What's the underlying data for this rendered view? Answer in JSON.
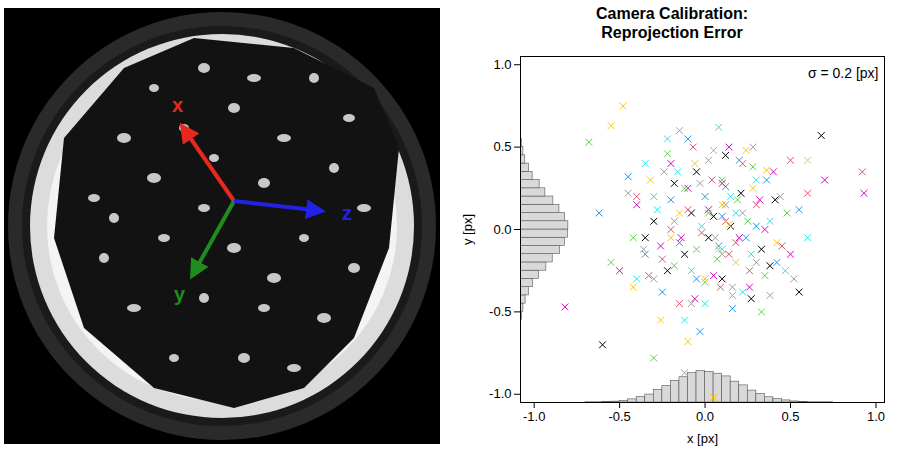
{
  "chart_data": {
    "type": "scatter",
    "title": "Camera Calibration:\nReprojection Error",
    "x_label": "x [px]",
    "y_label": "y [px]",
    "annotation": "σ = 0.2 [px]",
    "marker": "x",
    "grid": false,
    "xlim": [
      -1.08,
      1.05
    ],
    "ylim": [
      -1.05,
      1.05
    ],
    "xticks": [
      {
        "value": -1,
        "label": "-1.0"
      },
      {
        "value": -0.5,
        "label": "-0.5"
      },
      {
        "value": 0,
        "label": "0.0"
      },
      {
        "value": 0.5,
        "label": "0.5"
      },
      {
        "value": 1,
        "label": "1.0"
      }
    ],
    "yticks": [
      {
        "value": -1,
        "label": "-1.0"
      },
      {
        "value": -0.5,
        "label": "-0.5"
      },
      {
        "value": 0,
        "label": "0.0"
      },
      {
        "value": 0.5,
        "label": "0.5"
      },
      {
        "value": 1,
        "label": "1.0"
      }
    ],
    "series": [
      {
        "color": "#000000",
        "x": [
          0.05,
          -0.12,
          0.21,
          -0.3,
          0.1,
          0.33,
          -0.05,
          0.15,
          -0.22,
          0.02,
          0.41,
          -0.18,
          0.27,
          -0.6,
          0.68,
          0.38,
          -0.08,
          0.12,
          -0.35,
          0.55
        ],
        "y": [
          0.08,
          -0.15,
          0.22,
          0.05,
          -0.3,
          -0.12,
          0.35,
          0.02,
          -0.25,
          -0.05,
          0.18,
          0.28,
          -0.42,
          -0.7,
          0.57,
          -0.22,
          0.1,
          0.45,
          -0.05,
          -0.38
        ]
      },
      {
        "color": "#df536b",
        "x": [
          -0.1,
          0.18,
          0.92,
          0.04,
          -0.25,
          0.3,
          0.09,
          -0.4,
          0.22,
          -0.02,
          0.45,
          -0.15,
          0.12,
          0.6,
          -0.33,
          0.26,
          -0.07,
          0.5,
          0.14,
          -0.2
        ],
        "y": [
          0.12,
          -0.08,
          0.35,
          0.3,
          -0.18,
          0.15,
          -0.35,
          0.2,
          0.4,
          -0.02,
          -0.1,
          -0.45,
          0.05,
          0.22,
          -0.28,
          -0.25,
          0.5,
          0.42,
          -0.15,
          0.0
        ]
      },
      {
        "color": "#61d04f",
        "x": [
          -0.68,
          0.02,
          -0.18,
          0.25,
          0.1,
          -0.3,
          0.35,
          -0.05,
          0.16,
          -0.42,
          0.28,
          -0.12,
          0.07,
          -0.3,
          0.48,
          -0.22,
          0.19,
          0.0,
          -0.55,
          0.33
        ],
        "y": [
          0.53,
          0.1,
          -0.22,
          0.05,
          0.3,
          0.2,
          -0.28,
          -0.12,
          -0.4,
          -0.05,
          0.38,
          0.25,
          -0.18,
          -0.78,
          0.1,
          0.46,
          0.18,
          -0.32,
          -0.2,
          -0.5
        ]
      },
      {
        "color": "#2297e6",
        "x": [
          0.08,
          -0.2,
          0.3,
          -0.05,
          0.2,
          -0.35,
          0.12,
          0.42,
          -0.1,
          -0.25,
          0.55,
          0.0,
          0.24,
          -0.45,
          0.16,
          -0.15,
          0.36,
          -0.03,
          0.1,
          -0.62
        ],
        "y": [
          -0.1,
          0.18,
          0.02,
          -0.3,
          0.42,
          -0.15,
          0.26,
          -0.2,
          0.55,
          -0.38,
          0.12,
          0.2,
          -0.05,
          0.32,
          -0.48,
          -0.08,
          0.3,
          -0.62,
          0.08,
          0.1
        ]
      },
      {
        "color": "#28e2e5",
        "x": [
          0.15,
          -0.08,
          0.27,
          -0.28,
          0.05,
          0.38,
          -0.16,
          0.22,
          -0.4,
          0.1,
          -0.02,
          0.47,
          -0.22,
          0.3,
          0.0,
          -0.35,
          0.18,
          -0.12,
          0.6,
          0.08
        ],
        "y": [
          0.2,
          -0.25,
          -0.15,
          0.12,
          0.48,
          0.05,
          0.35,
          -0.38,
          -0.3,
          -0.12,
          0.02,
          -0.25,
          0.55,
          0.3,
          -0.45,
          0.4,
          0.1,
          -0.55,
          -0.05,
          0.62
        ]
      },
      {
        "color": "#cd0bbc",
        "x": [
          0.93,
          -0.82,
          0.2,
          -0.1,
          0.32,
          -0.26,
          0.05,
          0.4,
          -0.4,
          0.14,
          -0.06,
          0.26,
          -0.2,
          0.5,
          0.02,
          -0.5,
          0.35,
          -0.14,
          0.1,
          0.7
        ],
        "y": [
          0.22,
          -0.47,
          -0.05,
          0.25,
          0.18,
          -0.1,
          -0.28,
          0.35,
          0.15,
          0.5,
          -0.42,
          -0.35,
          0.4,
          -0.15,
          0.12,
          -0.25,
          0.0,
          -0.05,
          0.28,
          0.3
        ]
      },
      {
        "color": "#f5c710",
        "x": [
          -0.55,
          -0.48,
          0.05,
          0.1,
          -0.2,
          0.28,
          -0.06,
          0.18,
          -0.32,
          0.42,
          0.0,
          -0.15,
          0.24,
          -0.42,
          0.36,
          0.08,
          -0.26,
          0.6,
          0.14,
          -0.1
        ],
        "y": [
          0.63,
          0.75,
          -1.02,
          0.15,
          -0.05,
          0.25,
          0.4,
          -0.2,
          0.3,
          -0.08,
          -0.3,
          0.1,
          0.48,
          -0.35,
          0.36,
          -0.12,
          -0.55,
          0.42,
          0.03,
          -0.68
        ]
      },
      {
        "color": "#9e9e9e",
        "x": [
          -0.12,
          0.22,
          -0.03,
          0.3,
          -0.18,
          0.1,
          -0.36,
          0.44,
          0.02,
          -0.24,
          0.16,
          -0.08,
          0.52,
          -0.45,
          0.28,
          -0.3,
          0.06,
          0.38,
          -0.15,
          0.12
        ],
        "y": [
          -0.87,
          0.1,
          0.28,
          -0.2,
          0.05,
          -0.15,
          -0.12,
          0.2,
          0.42,
          0.35,
          -0.35,
          -0.45,
          -0.3,
          0.22,
          0.5,
          -0.3,
          -0.05,
          -0.4,
          0.6,
          0.15
        ]
      }
    ],
    "x_histogram": {
      "bins": [
        -0.75,
        -0.7,
        -0.65,
        -0.6,
        -0.55,
        -0.5,
        -0.45,
        -0.4,
        -0.35,
        -0.3,
        -0.25,
        -0.2,
        -0.15,
        -0.1,
        -0.05,
        0,
        0.05,
        0.1,
        0.15,
        0.2,
        0.25,
        0.3,
        0.35,
        0.4,
        0.45,
        0.5,
        0.55,
        0.6,
        0.65,
        0.7,
        0.75
      ],
      "counts": [
        0,
        1,
        1,
        2,
        4,
        8,
        15,
        27,
        38,
        60,
        79,
        104,
        121,
        141,
        150,
        147,
        138,
        125,
        100,
        82,
        57,
        41,
        25,
        17,
        10,
        5,
        3,
        1,
        1,
        1
      ]
    },
    "y_histogram": {
      "bins": [
        -0.75,
        -0.7,
        -0.65,
        -0.6,
        -0.55,
        -0.5,
        -0.45,
        -0.4,
        -0.35,
        -0.3,
        -0.25,
        -0.2,
        -0.15,
        -0.1,
        -0.05,
        0,
        0.05,
        0.1,
        0.15,
        0.2,
        0.25,
        0.3,
        0.35,
        0.4,
        0.45,
        0.5,
        0.55,
        0.6,
        0.65,
        0.7,
        0.75
      ],
      "counts": [
        1,
        1,
        1,
        2,
        5,
        9,
        16,
        26,
        40,
        58,
        81,
        101,
        124,
        139,
        149,
        150,
        140,
        122,
        103,
        78,
        60,
        38,
        27,
        15,
        9,
        4,
        2,
        1,
        0,
        1
      ]
    }
  },
  "image": {
    "axes": [
      {
        "label": "x",
        "color": "#e8281e"
      },
      {
        "label": "y",
        "color": "#1e8c1e"
      },
      {
        "label": "z",
        "color": "#2222e6"
      }
    ]
  }
}
